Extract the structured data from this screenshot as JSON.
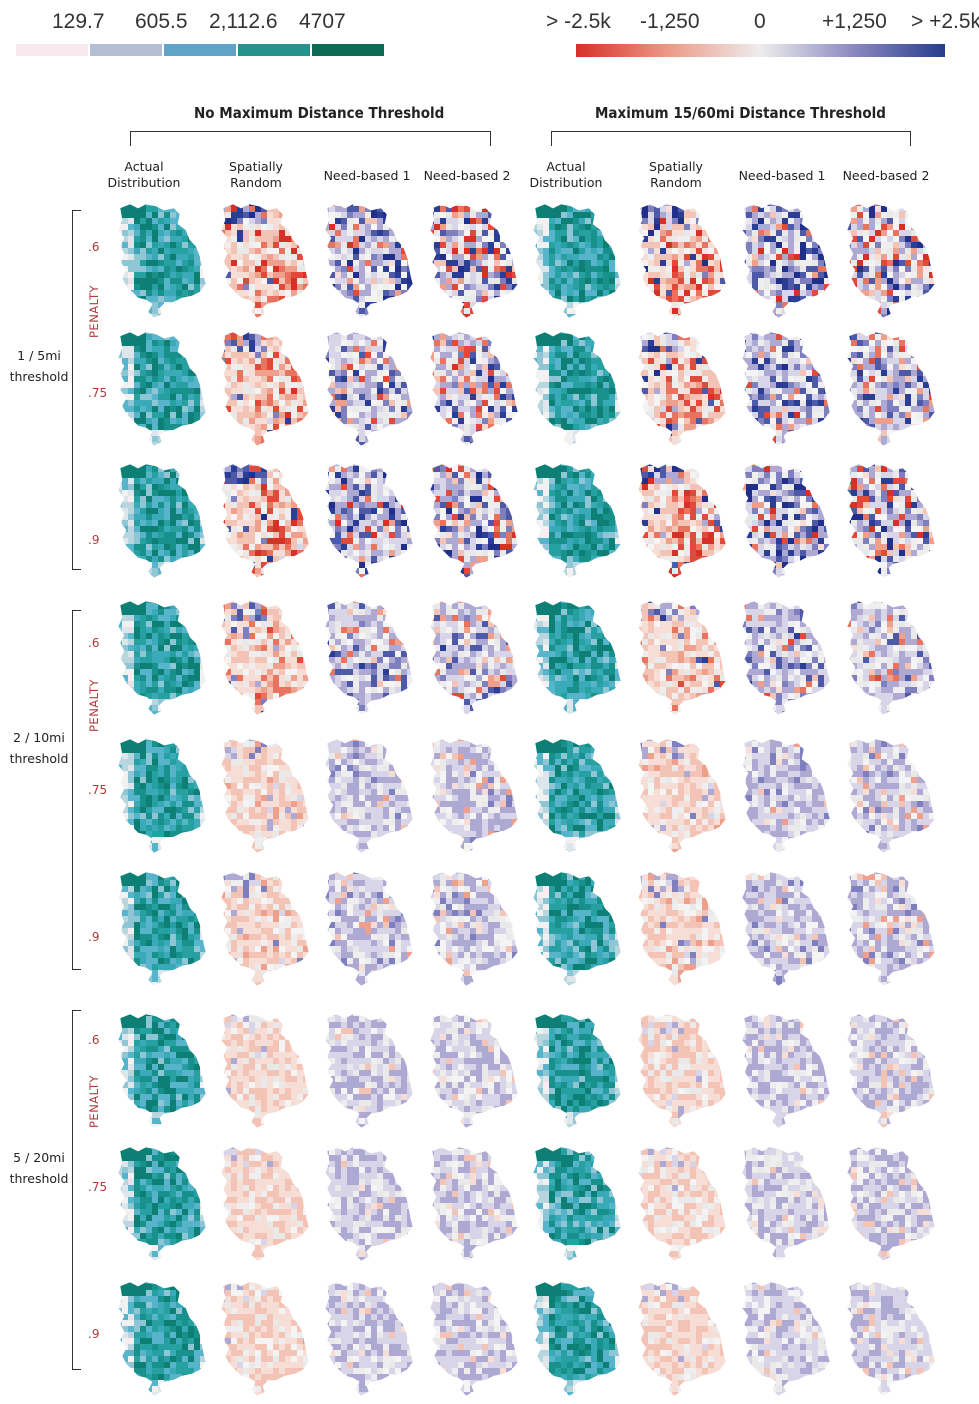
{
  "legend_left": {
    "values": [
      "129.7",
      "605.5",
      "2,112.6",
      "4707"
    ],
    "colors": [
      "#f7eaef",
      "#b4bfd6",
      "#5fa4c8",
      "#26918f",
      "#0d6b55"
    ]
  },
  "legend_right": {
    "values": [
      "> -2.5k",
      "-1,250",
      "0",
      "+1,250",
      "> +2.5k"
    ],
    "colors": [
      "#d73027",
      "#ec9a87",
      "#ededed",
      "#8c89c0",
      "#263d8c"
    ]
  },
  "groups": [
    {
      "title": "No Maximum Distance Threshold"
    },
    {
      "title": "Maximum 15/60mi Distance Threshold"
    }
  ],
  "columns": [
    {
      "label": "Actual\nDistribution",
      "kind": "actual"
    },
    {
      "label": "Spatially\nRandom",
      "kind": "random"
    },
    {
      "label": "Need-based 1",
      "kind": "need1"
    },
    {
      "label": "Need-based 2",
      "kind": "need2"
    },
    {
      "label": "Actual\nDistribution",
      "kind": "actual"
    },
    {
      "label": "Spatially\nRandom",
      "kind": "random"
    },
    {
      "label": "Need-based 1",
      "kind": "need1"
    },
    {
      "label": "Need-based 2",
      "kind": "need2"
    }
  ],
  "threshold_blocks": [
    {
      "label": "1 / 5mi\nthreshold",
      "penalty_label": "PENALTY",
      "penalties": [
        ".6",
        ".75",
        ".9"
      ]
    },
    {
      "label": "2 / 10mi\nthreshold",
      "penalty_label": "PENALTY",
      "penalties": [
        ".6",
        ".75",
        ".9"
      ]
    },
    {
      "label": "5 / 20mi\nthreshold",
      "penalty_label": "PENALTY",
      "penalties": [
        ".6",
        ".75",
        ".9"
      ]
    }
  ]
}
